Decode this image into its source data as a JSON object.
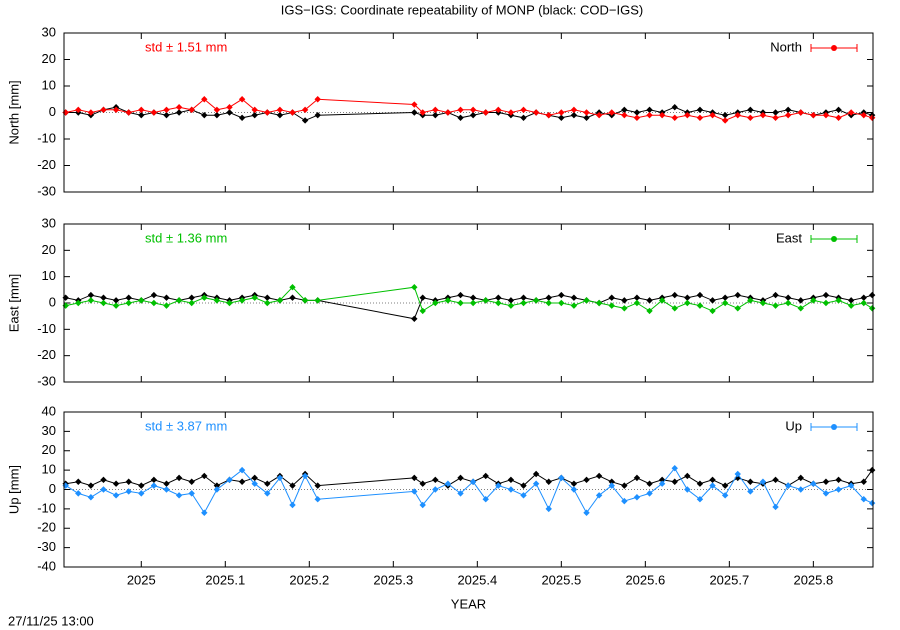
{
  "title": "IGS−IGS: Coordinate repeatability of MONP (black: COD−IGS)",
  "footer": "27/11/25 13:00",
  "chart_data": [
    {
      "type": "line",
      "ylabel": "North [mm]",
      "annotation": "std ± 1.51 mm",
      "xlim": [
        2024.908,
        2025.871
      ],
      "xticks": [
        2025,
        2025.1,
        2025.2,
        2025.3,
        2025.4,
        2025.5,
        2025.6,
        2025.7,
        2025.8
      ],
      "ylim": [
        -30,
        30
      ],
      "yticks": [
        -30,
        -20,
        -10,
        0,
        10,
        20,
        30
      ],
      "legend": "top-right",
      "x": [
        2024.91,
        2024.925,
        2024.94,
        2024.955,
        2024.97,
        2024.985,
        2025.0,
        2025.015,
        2025.03,
        2025.045,
        2025.06,
        2025.075,
        2025.09,
        2025.105,
        2025.12,
        2025.135,
        2025.15,
        2025.165,
        2025.18,
        2025.195,
        2025.21,
        2025.325,
        2025.335,
        2025.35,
        2025.365,
        2025.38,
        2025.395,
        2025.41,
        2025.425,
        2025.44,
        2025.455,
        2025.47,
        2025.485,
        2025.5,
        2025.515,
        2025.53,
        2025.545,
        2025.56,
        2025.575,
        2025.59,
        2025.605,
        2025.62,
        2025.635,
        2025.65,
        2025.665,
        2025.68,
        2025.695,
        2025.71,
        2025.725,
        2025.74,
        2025.755,
        2025.77,
        2025.785,
        2025.8,
        2025.815,
        2025.83,
        2025.845,
        2025.86,
        2025.87
      ],
      "series": [
        {
          "name": "North",
          "color": "#ff0000",
          "values": [
            0,
            1,
            0,
            1,
            1,
            0,
            1,
            0,
            1,
            2,
            1,
            5,
            1,
            2,
            5,
            1,
            0,
            1,
            0,
            1,
            5,
            3,
            0,
            1,
            0,
            1,
            1,
            0,
            1,
            0,
            1,
            0,
            -1,
            0,
            1,
            0,
            -1,
            0,
            -1,
            -2,
            -1,
            -1,
            -2,
            -1,
            -2,
            -1,
            -3,
            -1,
            -2,
            -1,
            -2,
            -1,
            0,
            -1,
            -1,
            -2,
            0,
            -1,
            -2
          ]
        },
        {
          "color": "#000000",
          "values": [
            0,
            0,
            -1,
            1,
            2,
            0,
            -1,
            0,
            -1,
            0,
            1,
            -1,
            -1,
            0,
            -2,
            -1,
            0,
            -1,
            0,
            -3,
            -1,
            0,
            -1,
            -1,
            0,
            -2,
            -1,
            0,
            0,
            -1,
            -2,
            0,
            -1,
            -2,
            -1,
            -2,
            0,
            -1,
            1,
            0,
            1,
            0,
            2,
            0,
            1,
            0,
            -1,
            0,
            1,
            0,
            0,
            1,
            0,
            -1,
            0,
            1,
            -1,
            0,
            -1
          ]
        }
      ]
    },
    {
      "type": "line",
      "ylabel": "East [mm]",
      "annotation": "std ± 1.36 mm",
      "xlim": [
        2024.908,
        2025.871
      ],
      "xticks": [
        2025,
        2025.1,
        2025.2,
        2025.3,
        2025.4,
        2025.5,
        2025.6,
        2025.7,
        2025.8
      ],
      "ylim": [
        -30,
        30
      ],
      "yticks": [
        -30,
        -20,
        -10,
        0,
        10,
        20,
        30
      ],
      "legend": "top-right",
      "x": [
        2024.91,
        2024.925,
        2024.94,
        2024.955,
        2024.97,
        2024.985,
        2025.0,
        2025.015,
        2025.03,
        2025.045,
        2025.06,
        2025.075,
        2025.09,
        2025.105,
        2025.12,
        2025.135,
        2025.15,
        2025.165,
        2025.18,
        2025.195,
        2025.21,
        2025.325,
        2025.335,
        2025.35,
        2025.365,
        2025.38,
        2025.395,
        2025.41,
        2025.425,
        2025.44,
        2025.455,
        2025.47,
        2025.485,
        2025.5,
        2025.515,
        2025.53,
        2025.545,
        2025.56,
        2025.575,
        2025.59,
        2025.605,
        2025.62,
        2025.635,
        2025.65,
        2025.665,
        2025.68,
        2025.695,
        2025.71,
        2025.725,
        2025.74,
        2025.755,
        2025.77,
        2025.785,
        2025.8,
        2025.815,
        2025.83,
        2025.845,
        2025.86,
        2025.87
      ],
      "series": [
        {
          "name": "East",
          "color": "#00c000",
          "values": [
            -1,
            0,
            1,
            0,
            -1,
            0,
            1,
            0,
            -1,
            1,
            0,
            2,
            1,
            0,
            1,
            2,
            0,
            1,
            6,
            1,
            1,
            6,
            -3,
            0,
            1,
            0,
            0,
            1,
            0,
            -1,
            0,
            1,
            0,
            0,
            -1,
            1,
            0,
            -1,
            -2,
            0,
            -3,
            1,
            -2,
            0,
            -1,
            -3,
            0,
            -2,
            1,
            0,
            -1,
            0,
            -2,
            1,
            0,
            1,
            -1,
            0,
            -2
          ]
        },
        {
          "color": "#000000",
          "values": [
            2,
            1,
            3,
            2,
            1,
            2,
            1,
            3,
            2,
            1,
            2,
            3,
            2,
            1,
            2,
            3,
            2,
            1,
            2,
            1,
            1,
            -6,
            2,
            1,
            2,
            3,
            2,
            1,
            2,
            1,
            2,
            1,
            2,
            3,
            2,
            1,
            0,
            2,
            1,
            2,
            1,
            2,
            3,
            2,
            3,
            1,
            2,
            3,
            2,
            1,
            3,
            2,
            1,
            2,
            3,
            2,
            1,
            2,
            3
          ]
        }
      ]
    },
    {
      "type": "line",
      "ylabel": "Up [mm]",
      "annotation": "std ± 3.87 mm",
      "xlabel": "YEAR",
      "xlim": [
        2024.908,
        2025.871
      ],
      "xticks": [
        2025,
        2025.1,
        2025.2,
        2025.3,
        2025.4,
        2025.5,
        2025.6,
        2025.7,
        2025.8
      ],
      "ylim": [
        -40,
        40
      ],
      "yticks": [
        -40,
        -30,
        -20,
        -10,
        0,
        10,
        20,
        30,
        40
      ],
      "legend": "top-right",
      "x": [
        2024.91,
        2024.925,
        2024.94,
        2024.955,
        2024.97,
        2024.985,
        2025.0,
        2025.015,
        2025.03,
        2025.045,
        2025.06,
        2025.075,
        2025.09,
        2025.105,
        2025.12,
        2025.135,
        2025.15,
        2025.165,
        2025.18,
        2025.195,
        2025.21,
        2025.325,
        2025.335,
        2025.35,
        2025.365,
        2025.38,
        2025.395,
        2025.41,
        2025.425,
        2025.44,
        2025.455,
        2025.47,
        2025.485,
        2025.5,
        2025.515,
        2025.53,
        2025.545,
        2025.56,
        2025.575,
        2025.59,
        2025.605,
        2025.62,
        2025.635,
        2025.65,
        2025.665,
        2025.68,
        2025.695,
        2025.71,
        2025.725,
        2025.74,
        2025.755,
        2025.77,
        2025.785,
        2025.8,
        2025.815,
        2025.83,
        2025.845,
        2025.86,
        2025.87
      ],
      "series": [
        {
          "name": "Up",
          "color": "#1e90ff",
          "values": [
            2,
            -2,
            -4,
            0,
            -3,
            -1,
            -2,
            2,
            0,
            -3,
            -2,
            -12,
            0,
            5,
            10,
            3,
            -2,
            6,
            -8,
            7,
            -5,
            -1,
            -8,
            0,
            3,
            -2,
            4,
            -5,
            2,
            0,
            -3,
            3,
            -10,
            6,
            0,
            -12,
            -3,
            2,
            -6,
            -4,
            -2,
            3,
            11,
            0,
            -5,
            2,
            -3,
            8,
            -1,
            4,
            -9,
            2,
            0,
            3,
            -2,
            0,
            2,
            -5,
            -7
          ]
        },
        {
          "color": "#000000",
          "values": [
            3,
            4,
            2,
            5,
            3,
            4,
            2,
            5,
            3,
            6,
            4,
            7,
            2,
            5,
            4,
            6,
            3,
            7,
            2,
            8,
            2,
            6,
            3,
            5,
            2,
            6,
            4,
            7,
            3,
            5,
            2,
            8,
            4,
            6,
            3,
            5,
            7,
            4,
            2,
            6,
            3,
            5,
            4,
            7,
            3,
            5,
            2,
            6,
            4,
            3,
            5,
            2,
            6,
            3,
            4,
            5,
            3,
            4,
            10
          ]
        }
      ]
    }
  ]
}
